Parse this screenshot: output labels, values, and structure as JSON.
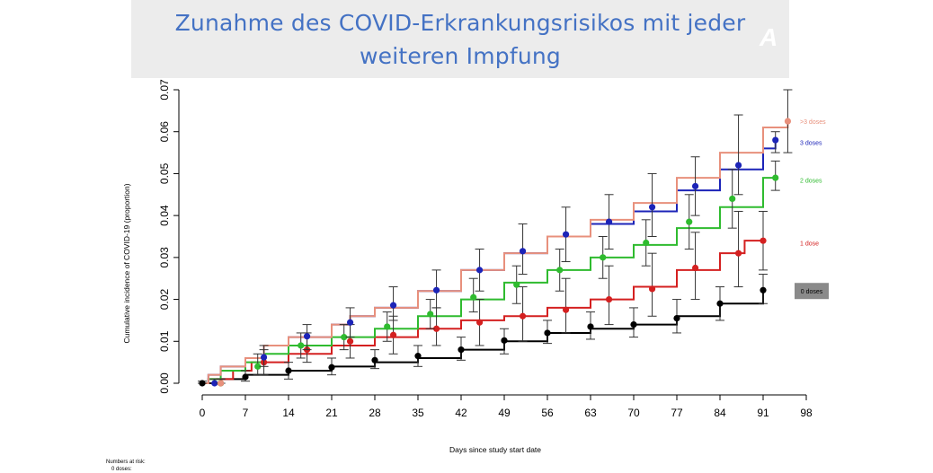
{
  "banner": {
    "title_line1": "Zunahme des COVID-Erkrankungsrisikos mit jeder",
    "title_line2": "weiteren Impfung",
    "watermark": "A"
  },
  "footer": {
    "numbers_at_risk": "Numbers at risk:",
    "zero_doses": "0 doses:"
  },
  "chart_data": {
    "type": "line",
    "subtype": "step (cumulative incidence curves with 95% CI error bars)",
    "xlabel": "Days since study start date",
    "ylabel": "Cumulative incidence of COVID-19 (proportion)",
    "xlim": [
      0,
      98
    ],
    "ylim": [
      0,
      0.07
    ],
    "x_ticks": [
      0,
      7,
      14,
      21,
      28,
      35,
      42,
      49,
      56,
      63,
      70,
      77,
      84,
      91,
      98
    ],
    "y_ticks": [
      "0.00",
      "0.01",
      "0.02",
      "0.03",
      "0.04",
      "0.05",
      "0.06",
      "0.07"
    ],
    "grid": false,
    "legend": "labels at right end of each curve",
    "series": [
      {
        "name": ">3 doses",
        "color": "#e8907c",
        "curve": [
          [
            0,
            0
          ],
          [
            1,
            0.002
          ],
          [
            3,
            0.004
          ],
          [
            7,
            0.006
          ],
          [
            10,
            0.009
          ],
          [
            14,
            0.011
          ],
          [
            21,
            0.014
          ],
          [
            24,
            0.016
          ],
          [
            28,
            0.018
          ],
          [
            35,
            0.022
          ],
          [
            42,
            0.027
          ],
          [
            49,
            0.031
          ],
          [
            56,
            0.035
          ],
          [
            63,
            0.039
          ],
          [
            70,
            0.043
          ],
          [
            77,
            0.049
          ],
          [
            84,
            0.055
          ],
          [
            91,
            0.061
          ],
          [
            95,
            0.063
          ]
        ],
        "points": [
          {
            "x": 3,
            "y": 0,
            "lo": 0,
            "hi": 0.001
          },
          {
            "x": 95,
            "y": 0.0625,
            "lo": 0.055,
            "hi": 0.07
          }
        ]
      },
      {
        "name": "3 doses",
        "color": "#1c24b8",
        "curve": [
          [
            0,
            0
          ],
          [
            1,
            0.002
          ],
          [
            3,
            0.004
          ],
          [
            7,
            0.006
          ],
          [
            10,
            0.009
          ],
          [
            14,
            0.011
          ],
          [
            21,
            0.014
          ],
          [
            24,
            0.016
          ],
          [
            28,
            0.018
          ],
          [
            35,
            0.022
          ],
          [
            42,
            0.027
          ],
          [
            49,
            0.031
          ],
          [
            56,
            0.035
          ],
          [
            63,
            0.038
          ],
          [
            70,
            0.041
          ],
          [
            77,
            0.046
          ],
          [
            84,
            0.051
          ],
          [
            91,
            0.056
          ],
          [
            93,
            0.058
          ]
        ],
        "points": [
          {
            "x": 2,
            "y": 0,
            "lo": 0,
            "hi": 0.001
          },
          {
            "x": 10,
            "y": 0.0062,
            "lo": 0.004,
            "hi": 0.009
          },
          {
            "x": 17,
            "y": 0.0112,
            "lo": 0.008,
            "hi": 0.014
          },
          {
            "x": 24,
            "y": 0.0145,
            "lo": 0.011,
            "hi": 0.018
          },
          {
            "x": 31,
            "y": 0.0186,
            "lo": 0.015,
            "hi": 0.023
          },
          {
            "x": 38,
            "y": 0.0222,
            "lo": 0.018,
            "hi": 0.027
          },
          {
            "x": 45,
            "y": 0.027,
            "lo": 0.022,
            "hi": 0.032
          },
          {
            "x": 52,
            "y": 0.0315,
            "lo": 0.026,
            "hi": 0.038
          },
          {
            "x": 59,
            "y": 0.0355,
            "lo": 0.029,
            "hi": 0.042
          },
          {
            "x": 66,
            "y": 0.0385,
            "lo": 0.032,
            "hi": 0.045
          },
          {
            "x": 73,
            "y": 0.042,
            "lo": 0.035,
            "hi": 0.05
          },
          {
            "x": 80,
            "y": 0.047,
            "lo": 0.04,
            "hi": 0.054
          },
          {
            "x": 87,
            "y": 0.052,
            "lo": 0.045,
            "hi": 0.064
          },
          {
            "x": 93,
            "y": 0.058,
            "lo": 0.055,
            "hi": 0.06
          }
        ]
      },
      {
        "name": "2 doses",
        "color": "#2fbb2f",
        "curve": [
          [
            0,
            0
          ],
          [
            1,
            0.001
          ],
          [
            3,
            0.003
          ],
          [
            7,
            0.005
          ],
          [
            10,
            0.007
          ],
          [
            14,
            0.009
          ],
          [
            21,
            0.011
          ],
          [
            28,
            0.013
          ],
          [
            35,
            0.016
          ],
          [
            42,
            0.02
          ],
          [
            49,
            0.024
          ],
          [
            56,
            0.027
          ],
          [
            63,
            0.03
          ],
          [
            70,
            0.033
          ],
          [
            77,
            0.037
          ],
          [
            84,
            0.042
          ],
          [
            91,
            0.049
          ],
          [
            93,
            0.049
          ]
        ],
        "points": [
          {
            "x": 3,
            "y": 0,
            "lo": 0,
            "hi": 0.001
          },
          {
            "x": 9,
            "y": 0.004,
            "lo": 0.002,
            "hi": 0.007
          },
          {
            "x": 16,
            "y": 0.009,
            "lo": 0.006,
            "hi": 0.012
          },
          {
            "x": 23,
            "y": 0.011,
            "lo": 0.008,
            "hi": 0.014
          },
          {
            "x": 30,
            "y": 0.0135,
            "lo": 0.01,
            "hi": 0.017
          },
          {
            "x": 37,
            "y": 0.0165,
            "lo": 0.013,
            "hi": 0.02
          },
          {
            "x": 44,
            "y": 0.0205,
            "lo": 0.017,
            "hi": 0.025
          },
          {
            "x": 51,
            "y": 0.0235,
            "lo": 0.019,
            "hi": 0.028
          },
          {
            "x": 58,
            "y": 0.027,
            "lo": 0.022,
            "hi": 0.032
          },
          {
            "x": 65,
            "y": 0.03,
            "lo": 0.025,
            "hi": 0.035
          },
          {
            "x": 72,
            "y": 0.0335,
            "lo": 0.028,
            "hi": 0.039
          },
          {
            "x": 79,
            "y": 0.0385,
            "lo": 0.032,
            "hi": 0.045
          },
          {
            "x": 86,
            "y": 0.044,
            "lo": 0.037,
            "hi": 0.051
          },
          {
            "x": 93,
            "y": 0.049,
            "lo": 0.046,
            "hi": 0.053
          }
        ]
      },
      {
        "name": "1 dose",
        "color": "#d42020",
        "curve": [
          [
            0,
            0
          ],
          [
            1,
            0.001
          ],
          [
            5,
            0.003
          ],
          [
            8,
            0.005
          ],
          [
            14,
            0.007
          ],
          [
            21,
            0.009
          ],
          [
            28,
            0.011
          ],
          [
            35,
            0.013
          ],
          [
            42,
            0.015
          ],
          [
            49,
            0.016
          ],
          [
            56,
            0.018
          ],
          [
            63,
            0.02
          ],
          [
            70,
            0.023
          ],
          [
            77,
            0.027
          ],
          [
            84,
            0.031
          ],
          [
            88,
            0.034
          ],
          [
            91,
            0.034
          ]
        ],
        "points": [
          {
            "x": 3,
            "y": 0,
            "lo": 0,
            "hi": 0.001
          },
          {
            "x": 10,
            "y": 0.005,
            "lo": 0.002,
            "hi": 0.008
          },
          {
            "x": 17,
            "y": 0.008,
            "lo": 0.005,
            "hi": 0.012
          },
          {
            "x": 24,
            "y": 0.01,
            "lo": 0.006,
            "hi": 0.014
          },
          {
            "x": 31,
            "y": 0.0115,
            "lo": 0.007,
            "hi": 0.016
          },
          {
            "x": 38,
            "y": 0.013,
            "lo": 0.009,
            "hi": 0.018
          },
          {
            "x": 45,
            "y": 0.0145,
            "lo": 0.009,
            "hi": 0.02
          },
          {
            "x": 52,
            "y": 0.016,
            "lo": 0.01,
            "hi": 0.023
          },
          {
            "x": 59,
            "y": 0.0175,
            "lo": 0.012,
            "hi": 0.025
          },
          {
            "x": 66,
            "y": 0.02,
            "lo": 0.014,
            "hi": 0.028
          },
          {
            "x": 73,
            "y": 0.0225,
            "lo": 0.016,
            "hi": 0.031
          },
          {
            "x": 80,
            "y": 0.0275,
            "lo": 0.02,
            "hi": 0.036
          },
          {
            "x": 87,
            "y": 0.031,
            "lo": 0.023,
            "hi": 0.041
          },
          {
            "x": 91,
            "y": 0.034,
            "lo": 0.027,
            "hi": 0.041
          }
        ]
      },
      {
        "name": "0 doses",
        "color": "#000000",
        "curve": [
          [
            0,
            0
          ],
          [
            3,
            0.001
          ],
          [
            7,
            0.002
          ],
          [
            14,
            0.003
          ],
          [
            21,
            0.004
          ],
          [
            28,
            0.005
          ],
          [
            35,
            0.006
          ],
          [
            42,
            0.008
          ],
          [
            49,
            0.01
          ],
          [
            56,
            0.012
          ],
          [
            63,
            0.013
          ],
          [
            70,
            0.014
          ],
          [
            77,
            0.016
          ],
          [
            84,
            0.019
          ],
          [
            91,
            0.022
          ]
        ],
        "points": [
          {
            "x": 0,
            "y": 0,
            "lo": 0,
            "hi": 0.0005
          },
          {
            "x": 7,
            "y": 0.0015,
            "lo": 0.0005,
            "hi": 0.003
          },
          {
            "x": 14,
            "y": 0.003,
            "lo": 0.001,
            "hi": 0.005
          },
          {
            "x": 21,
            "y": 0.0038,
            "lo": 0.002,
            "hi": 0.006
          },
          {
            "x": 28,
            "y": 0.0055,
            "lo": 0.0035,
            "hi": 0.008
          },
          {
            "x": 35,
            "y": 0.0065,
            "lo": 0.004,
            "hi": 0.009
          },
          {
            "x": 42,
            "y": 0.008,
            "lo": 0.0055,
            "hi": 0.011
          },
          {
            "x": 49,
            "y": 0.0102,
            "lo": 0.007,
            "hi": 0.013
          },
          {
            "x": 56,
            "y": 0.012,
            "lo": 0.0095,
            "hi": 0.015
          },
          {
            "x": 63,
            "y": 0.0135,
            "lo": 0.0105,
            "hi": 0.017
          },
          {
            "x": 70,
            "y": 0.014,
            "lo": 0.011,
            "hi": 0.018
          },
          {
            "x": 77,
            "y": 0.0155,
            "lo": 0.012,
            "hi": 0.02
          },
          {
            "x": 84,
            "y": 0.019,
            "lo": 0.015,
            "hi": 0.023
          },
          {
            "x": 91,
            "y": 0.0222,
            "lo": 0.019,
            "hi": 0.026
          }
        ]
      }
    ]
  }
}
